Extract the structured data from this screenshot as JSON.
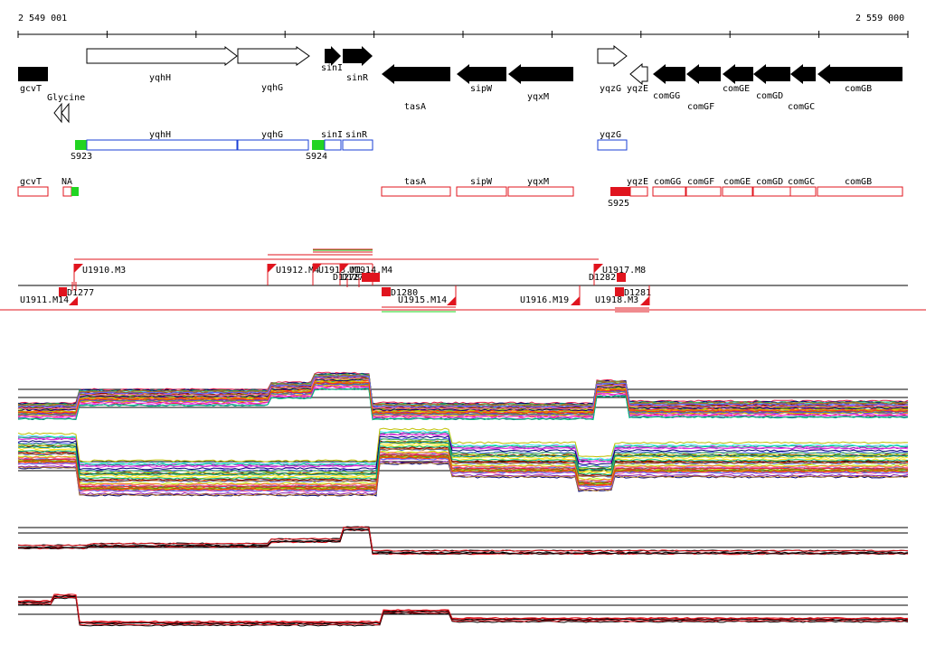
{
  "coordinates": {
    "start_label": "2 549 001",
    "end_label": "2 559 000"
  },
  "colors": {
    "strand_fill": "#000000",
    "blue": "#1a3fd6",
    "red": "#e0141e",
    "green": "#22d422",
    "black": "#000000"
  },
  "genes_row1": {
    "labels": [
      "gcvT",
      "Glycine",
      "yqhH",
      "yqhG",
      "sinI",
      "sinR",
      "tasA",
      "sipW",
      "yqxM",
      "yqzG",
      "yqzE",
      "comGG",
      "comGF",
      "comGE",
      "comGD",
      "comGC",
      "comGB"
    ]
  },
  "row_blue": {
    "labels": [
      "yqhH",
      "yqhG",
      "sinI",
      "sinR",
      "yqzG"
    ],
    "markers": [
      "S923",
      "S924"
    ]
  },
  "row_red": {
    "labels": [
      "gcvT",
      "NA",
      "tasA",
      "sipW",
      "yqxM",
      "yqzE",
      "comGG",
      "comGF",
      "comGE",
      "comGD",
      "comGC",
      "comGB"
    ],
    "markers": [
      "S925"
    ]
  },
  "tu_row": {
    "labels": [
      "U1910.M3",
      "U1912.M4",
      "U1913.M1",
      "U1914.M4",
      "U1911.M14",
      "D1277",
      "D1278",
      "D1279",
      "D1280",
      "U1915.M14",
      "U1916.M19",
      "U1917.M8",
      "D1282",
      "U1918.M3",
      "D1281"
    ]
  },
  "expression_panels": [
    {
      "name": "panel-1"
    },
    {
      "name": "panel-2"
    },
    {
      "name": "panel-3"
    },
    {
      "name": "panel-4"
    }
  ]
}
